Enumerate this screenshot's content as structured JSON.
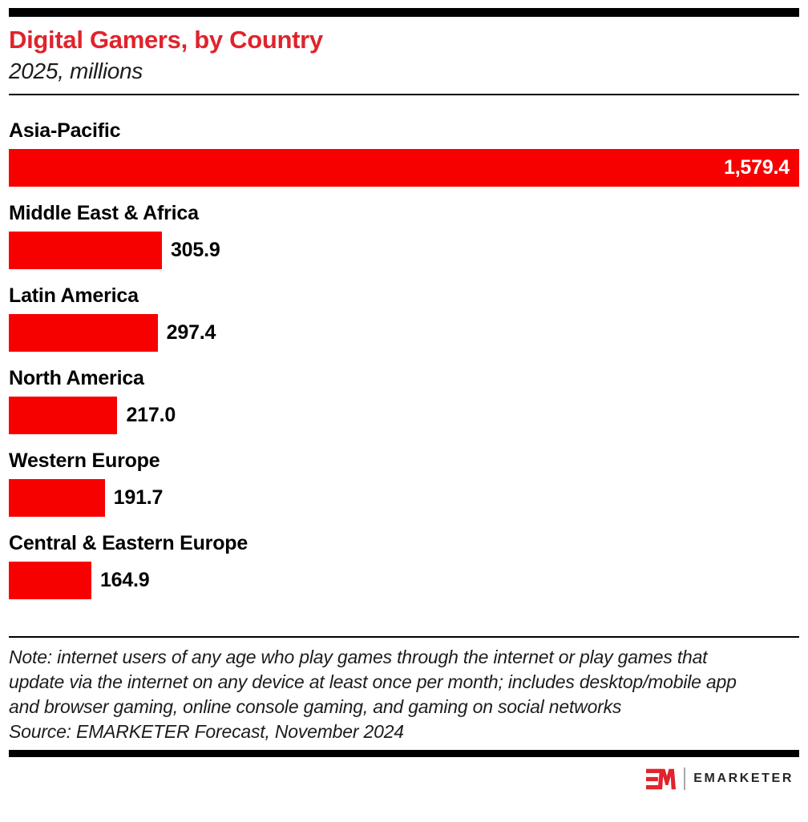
{
  "header": {
    "title": "Digital Gamers, by Country",
    "subtitle": "2025, millions"
  },
  "chart_data": {
    "type": "bar",
    "orientation": "horizontal",
    "title": "Digital Gamers, by Country",
    "subtitle": "2025, millions",
    "unit": "millions",
    "categories": [
      "Asia-Pacific",
      "Middle East & Africa",
      "Latin America",
      "North America",
      "Western Europe",
      "Central & Eastern Europe"
    ],
    "values": [
      1579.4,
      305.9,
      297.4,
      217.0,
      191.7,
      164.9
    ],
    "value_labels": [
      "1,579.4",
      "305.9",
      "297.4",
      "217.0",
      "191.7",
      "164.9"
    ],
    "xlim": [
      0,
      1579.4
    ],
    "grid": false,
    "legend": "none",
    "bar_color": "#f70000",
    "value_label_inside_first_bar": true
  },
  "footer": {
    "note_lines": [
      "Note: internet users of any age who play games through the internet or play games that",
      "update via the internet on any device at least once per month; includes desktop/mobile app",
      "and browser gaming, online console gaming, and gaming on social networks"
    ],
    "source": "Source: EMARKETER Forecast, November 2024"
  },
  "branding": {
    "monogram": "EM",
    "wordmark": "EMARKETER",
    "brand_red": "#e0232c"
  },
  "colors": {
    "bar_red": "#f70000",
    "title_red": "#e0232c",
    "text": "#111111",
    "rule": "#000000"
  }
}
